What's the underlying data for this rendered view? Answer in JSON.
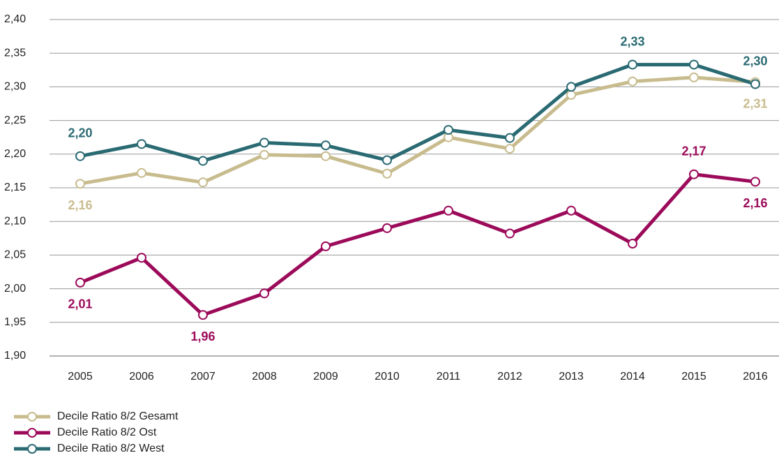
{
  "chart_data": {
    "type": "line",
    "categories": [
      "2005",
      "2006",
      "2007",
      "2008",
      "2009",
      "2010",
      "2011",
      "2012",
      "2013",
      "2014",
      "2015",
      "2016"
    ],
    "series": [
      {
        "name": "Decile Ratio 8/2 Gesamt",
        "color": "#c8bc8e",
        "values": [
          2.156,
          2.172,
          2.158,
          2.199,
          2.197,
          2.171,
          2.225,
          2.208,
          2.288,
          2.308,
          2.314,
          2.307
        ],
        "value_labels": [
          "2,16",
          null,
          null,
          null,
          null,
          null,
          null,
          null,
          null,
          null,
          null,
          "2,31"
        ]
      },
      {
        "name": "Decile Ratio 8/2 Ost",
        "color": "#9c0a5a",
        "values": [
          2.009,
          2.046,
          1.961,
          1.993,
          2.063,
          2.09,
          2.116,
          2.082,
          2.116,
          2.067,
          2.17,
          2.159
        ],
        "value_labels": [
          "2,01",
          null,
          "1,96",
          null,
          null,
          null,
          null,
          null,
          null,
          null,
          "2,17",
          "2,16"
        ]
      },
      {
        "name": "Decile Ratio 8/2 West",
        "color": "#2a6a72",
        "values": [
          2.197,
          2.215,
          2.19,
          2.217,
          2.213,
          2.191,
          2.236,
          2.224,
          2.3,
          2.333,
          2.333,
          2.304
        ],
        "value_labels": [
          "2,20",
          null,
          null,
          null,
          null,
          null,
          null,
          null,
          null,
          "2,33",
          null,
          "2,30"
        ]
      }
    ],
    "ylim": [
      1.9,
      2.4
    ],
    "yticks": [
      {
        "value": 1.9,
        "label": "1,90"
      },
      {
        "value": 1.95,
        "label": "1,95"
      },
      {
        "value": 2.0,
        "label": "2,00"
      },
      {
        "value": 2.05,
        "label": "2,05"
      },
      {
        "value": 2.1,
        "label": "2,10"
      },
      {
        "value": 2.15,
        "label": "2,15"
      },
      {
        "value": 2.2,
        "label": "2,20"
      },
      {
        "value": 2.25,
        "label": "2,25"
      },
      {
        "value": 2.3,
        "label": "2,30"
      },
      {
        "value": 2.35,
        "label": "2,35"
      },
      {
        "value": 2.4,
        "label": "2,40"
      }
    ],
    "grid": true
  }
}
